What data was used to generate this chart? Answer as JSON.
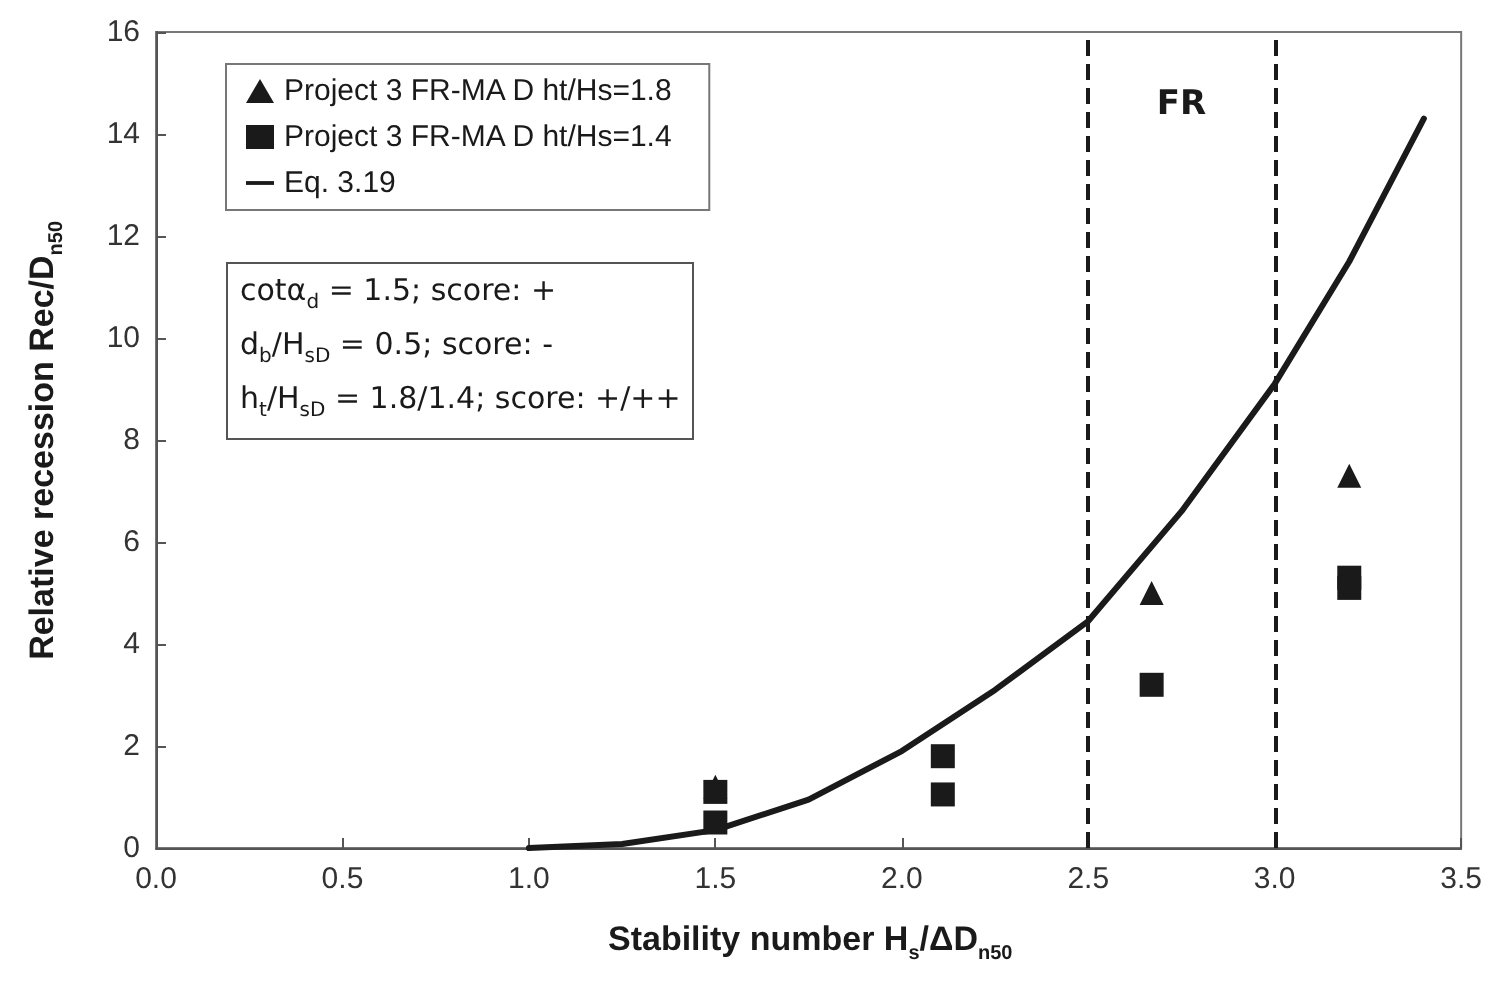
{
  "chart_data": {
    "type": "scatter",
    "xlabel": "Stability number H$_{s}$/ΔD$_{n50}$",
    "ylabel": "Relative recession Rec/D$_{n50}$",
    "xlim": [
      0,
      3.5
    ],
    "xticks": [
      {
        "value": 0,
        "label": "0.0"
      },
      {
        "value": 0.5,
        "label": "0.5"
      },
      {
        "value": 1,
        "label": "1.0"
      },
      {
        "value": 1.5,
        "label": "1.5"
      },
      {
        "value": 2,
        "label": "2.0"
      },
      {
        "value": 2.5,
        "label": "2.5"
      },
      {
        "value": 3,
        "label": "3.0"
      },
      {
        "value": 3.5,
        "label": "3.5"
      }
    ],
    "ylim": [
      0,
      16
    ],
    "yticks": [
      0,
      2,
      4,
      6,
      8,
      10,
      12,
      14,
      16
    ],
    "series": [
      {
        "name": "Project 3 FR-MA D ht/Hs=1.8",
        "color": "#1a1a1a",
        "marker": "triangle",
        "x": [
          1.5,
          2.67,
          3.2
        ],
        "values": [
          1.2,
          5.0,
          7.3
        ]
      },
      {
        "name": "Project 3 FR-MA D ht/Hs=1.4",
        "color": "#1a1a1a",
        "marker": "square",
        "x": [
          1.5,
          1.5,
          2.11,
          2.11,
          2.67,
          3.2,
          3.2
        ],
        "values": [
          1.1,
          0.5,
          1.8,
          1.05,
          3.2,
          5.3,
          5.1
        ]
      },
      {
        "name": "Eq. 3.19",
        "type": "line",
        "color": "#1a1a1a",
        "marker": "none",
        "line_style": "solid",
        "x": [
          1.0,
          1.25,
          1.5,
          1.75,
          2.0,
          2.25,
          2.5,
          2.75,
          3.0,
          3.2,
          3.4
        ],
        "values": [
          0,
          0.08,
          0.35,
          0.95,
          1.9,
          3.1,
          4.45,
          6.6,
          9.1,
          11.5,
          14.3
        ]
      }
    ],
    "ref_lines": [
      {
        "axis": "x",
        "value": 2.5,
        "color": "#1a1a1a",
        "line_style": "dashed"
      },
      {
        "axis": "x",
        "value": 3.0,
        "color": "#1a1a1a",
        "line_style": "dashed"
      }
    ],
    "annotations": [
      "FR",
      "cotα$_{d}$ =  1.5; score: +",
      "d$_{b}$/H$_{sD}$ = 0.5; score: -",
      "h$_{t}$/H$_{sD}$ =  1.8/1.4; score: +/++"
    ],
    "grid": false,
    "legend": "top left"
  }
}
